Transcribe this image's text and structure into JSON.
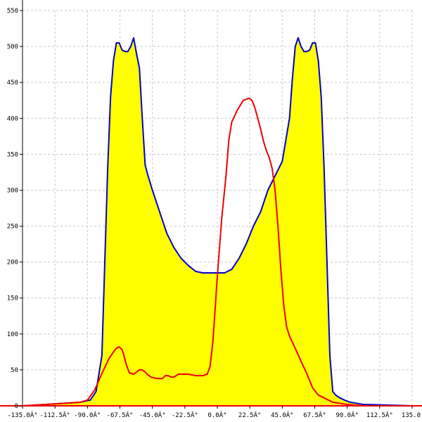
{
  "chart_data": {
    "type": "area",
    "title": "",
    "xlabel": "",
    "ylabel": "",
    "xlim": [
      -135,
      135
    ],
    "ylim": [
      0,
      550
    ],
    "grid": true,
    "x_ticks": [
      -135,
      -112.5,
      -90,
      -67.5,
      -45,
      -22.5,
      0,
      22.5,
      45,
      67.5,
      90,
      112.5,
      135
    ],
    "x_tick_labels": [
      "-135.0Â°",
      "-112.5Â°",
      "-90.0Â°",
      "-67.5Â°",
      "-45.0Â°",
      "-22.5Â°",
      "0.0Â°",
      "22.5Â°",
      "45.0Â°",
      "67.5Â°",
      "90.0Â°",
      "112.5Â°",
      "135.0"
    ],
    "y_ticks": [
      0,
      50,
      100,
      150,
      200,
      250,
      300,
      350,
      400,
      450,
      500,
      550
    ],
    "y_tick_labels": [
      "0",
      "50",
      "100",
      "150",
      "200",
      "250",
      "300",
      "350",
      "400",
      "450",
      "500",
      "550"
    ],
    "series": [
      {
        "color": "#0000cc",
        "fill": "#ffff00",
        "x": [
          -135,
          -102,
          -95,
          -88,
          -84,
          -80,
          -78,
          -76,
          -74,
          -72,
          -70,
          -68,
          -66,
          -64,
          -62,
          -60,
          -58,
          -56,
          -54,
          -52,
          -50,
          -48,
          -45,
          -40,
          -35,
          -30,
          -25,
          -20,
          -15,
          -10,
          -5,
          0,
          5,
          10,
          15,
          20,
          25,
          30,
          35,
          40,
          45,
          50,
          52,
          54,
          56,
          58,
          60,
          62,
          64,
          66,
          68,
          70,
          72,
          74,
          76,
          78,
          80,
          82,
          84,
          88,
          92,
          95,
          101,
          135
        ],
        "y": [
          0,
          4,
          5,
          8,
          20,
          70,
          200,
          330,
          430,
          480,
          505,
          505,
          495,
          493,
          493,
          500,
          512,
          490,
          470,
          400,
          335,
          320,
          300,
          270,
          240,
          220,
          205,
          195,
          187,
          185,
          185,
          185,
          185,
          190,
          205,
          225,
          250,
          270,
          300,
          320,
          340,
          400,
          455,
          500,
          512,
          500,
          493,
          493,
          495,
          505,
          505,
          480,
          430,
          330,
          200,
          70,
          20,
          15,
          12,
          8,
          5,
          4,
          2,
          0
        ]
      },
      {
        "color": "#ee0000",
        "x": [
          -135,
          -102,
          -95,
          -90,
          -85,
          -80,
          -75,
          -72,
          -70,
          -68,
          -66,
          -65,
          -63,
          -61,
          -58,
          -56,
          -54,
          -52,
          -50,
          -48,
          -46,
          -42,
          -38,
          -36,
          -34,
          -32,
          -30,
          -27,
          -24,
          -20,
          -15,
          -10,
          -7,
          -5,
          -3,
          0,
          3,
          6,
          8,
          10,
          14,
          18,
          22,
          24,
          26,
          28,
          30,
          32,
          34,
          36,
          38,
          40,
          42,
          44,
          46,
          48,
          50,
          54,
          58,
          62,
          66,
          70,
          75,
          80,
          90,
          95,
          101,
          135
        ],
        "y": [
          0,
          4,
          5,
          8,
          22,
          45,
          66,
          75,
          80,
          82,
          78,
          72,
          57,
          46,
          44,
          47,
          50,
          50,
          47,
          43,
          40,
          38,
          38,
          42,
          42,
          40,
          40,
          44,
          44,
          44,
          42,
          42,
          44,
          55,
          90,
          180,
          260,
          320,
          370,
          395,
          412,
          425,
          428,
          425,
          415,
          400,
          385,
          368,
          355,
          345,
          330,
          300,
          250,
          190,
          140,
          110,
          97,
          80,
          62,
          45,
          25,
          15,
          10,
          5,
          2,
          1,
          0,
          0
        ]
      }
    ]
  }
}
